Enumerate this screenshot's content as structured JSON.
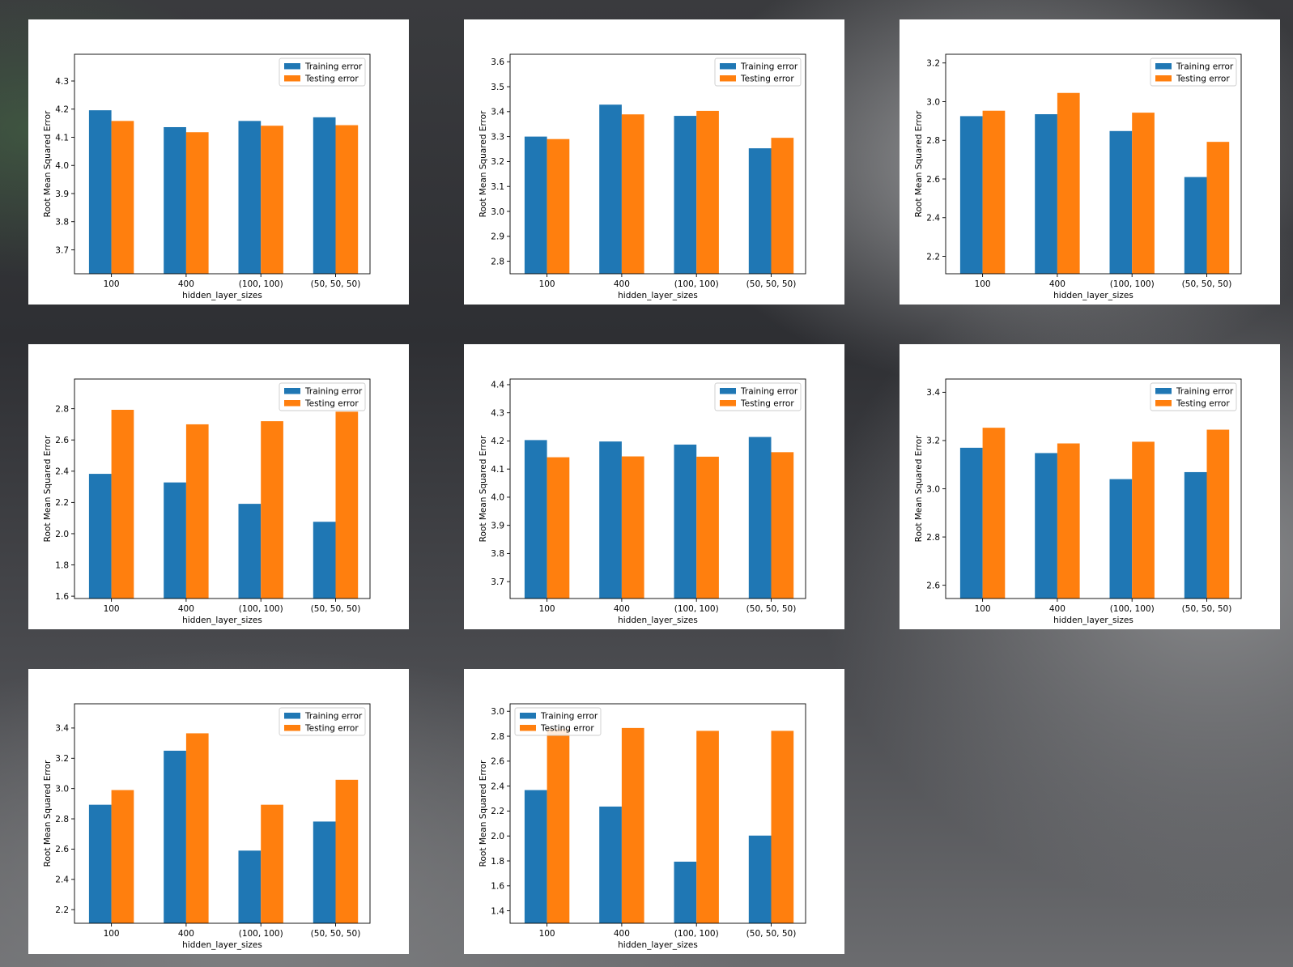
{
  "colors": {
    "training": "#1f77b4",
    "testing": "#ff7f0e"
  },
  "chart_data": [
    {
      "type": "bar",
      "categories": [
        "100",
        "400",
        "(100, 100)",
        "(50, 50, 50)"
      ],
      "series": [
        {
          "name": "Training error",
          "values": [
            4.196,
            4.136,
            4.158,
            4.171
          ]
        },
        {
          "name": "Testing error",
          "values": [
            4.158,
            4.118,
            4.141,
            4.143
          ]
        }
      ],
      "xlabel": "hidden_layer_sizes",
      "ylabel": "Root Mean Squared Error",
      "ylim": [
        3.615,
        4.395
      ],
      "yticks": [
        3.7,
        3.8,
        3.9,
        4.0,
        4.1,
        4.2,
        4.3
      ],
      "legend": "top-right"
    },
    {
      "type": "bar",
      "categories": [
        "100",
        "400",
        "(100, 100)",
        "(50, 50, 50)"
      ],
      "series": [
        {
          "name": "Training error",
          "values": [
            3.3,
            3.428,
            3.383,
            3.253
          ]
        },
        {
          "name": "Testing error",
          "values": [
            3.29,
            3.389,
            3.403,
            3.295
          ]
        }
      ],
      "xlabel": "hidden_layer_sizes",
      "ylabel": "Root Mean Squared Error",
      "ylim": [
        2.75,
        3.63
      ],
      "yticks": [
        2.8,
        2.9,
        3.0,
        3.1,
        3.2,
        3.3,
        3.4,
        3.5,
        3.6
      ],
      "legend": "top-right"
    },
    {
      "type": "bar",
      "categories": [
        "100",
        "400",
        "(100, 100)",
        "(50, 50, 50)"
      ],
      "series": [
        {
          "name": "Training error",
          "values": [
            2.925,
            2.935,
            2.848,
            2.61
          ]
        },
        {
          "name": "Testing error",
          "values": [
            2.953,
            3.045,
            2.943,
            2.792
          ]
        }
      ],
      "xlabel": "hidden_layer_sizes",
      "ylabel": "Root Mean Squared Error",
      "ylim": [
        2.11,
        3.245
      ],
      "yticks": [
        2.2,
        2.4,
        2.6,
        2.8,
        3.0,
        3.2
      ],
      "legend": "top-right"
    },
    {
      "type": "bar",
      "categories": [
        "100",
        "400",
        "(100, 100)",
        "(50, 50, 50)"
      ],
      "series": [
        {
          "name": "Training error",
          "values": [
            2.383,
            2.328,
            2.191,
            2.076
          ]
        },
        {
          "name": "Testing error",
          "values": [
            2.793,
            2.7,
            2.72,
            2.781
          ]
        }
      ],
      "xlabel": "hidden_layer_sizes",
      "ylabel": "Root Mean Squared Error",
      "ylim": [
        1.585,
        2.99
      ],
      "yticks": [
        1.6,
        1.8,
        2.0,
        2.2,
        2.4,
        2.6,
        2.8
      ],
      "legend": "top-right"
    },
    {
      "type": "bar",
      "categories": [
        "100",
        "400",
        "(100, 100)",
        "(50, 50, 50)"
      ],
      "series": [
        {
          "name": "Training error",
          "values": [
            4.203,
            4.198,
            4.187,
            4.214
          ]
        },
        {
          "name": "Testing error",
          "values": [
            4.142,
            4.145,
            4.144,
            4.16
          ]
        }
      ],
      "xlabel": "hidden_layer_sizes",
      "ylabel": "Root Mean Squared Error",
      "ylim": [
        3.64,
        4.42
      ],
      "yticks": [
        3.7,
        3.8,
        3.9,
        4.0,
        4.1,
        4.2,
        4.3,
        4.4
      ],
      "legend": "top-right"
    },
    {
      "type": "bar",
      "categories": [
        "100",
        "400",
        "(100, 100)",
        "(50, 50, 50)"
      ],
      "series": [
        {
          "name": "Training error",
          "values": [
            3.17,
            3.148,
            3.04,
            3.069
          ]
        },
        {
          "name": "Testing error",
          "values": [
            3.253,
            3.188,
            3.195,
            3.245
          ]
        }
      ],
      "xlabel": "hidden_layer_sizes",
      "ylabel": "Root Mean Squared Error",
      "ylim": [
        2.545,
        3.455
      ],
      "yticks": [
        2.6,
        2.8,
        3.0,
        3.2,
        3.4
      ],
      "legend": "top-right"
    },
    {
      "type": "bar",
      "categories": [
        "100",
        "400",
        "(100, 100)",
        "(50, 50, 50)"
      ],
      "series": [
        {
          "name": "Training error",
          "values": [
            2.893,
            3.25,
            2.59,
            2.782
          ]
        },
        {
          "name": "Testing error",
          "values": [
            2.99,
            3.365,
            2.893,
            3.058
          ]
        }
      ],
      "xlabel": "hidden_layer_sizes",
      "ylabel": "Root Mean Squared Error",
      "ylim": [
        2.11,
        3.56
      ],
      "yticks": [
        2.2,
        2.4,
        2.6,
        2.8,
        3.0,
        3.2,
        3.4
      ],
      "legend": "top-right"
    },
    {
      "type": "bar",
      "categories": [
        "100",
        "400",
        "(100, 100)",
        "(50, 50, 50)"
      ],
      "series": [
        {
          "name": "Training error",
          "values": [
            2.368,
            2.236,
            1.794,
            2.003
          ]
        },
        {
          "name": "Testing error",
          "values": [
            2.86,
            2.866,
            2.843,
            2.843
          ]
        }
      ],
      "xlabel": "hidden_layer_sizes",
      "ylabel": "Root Mean Squared Error",
      "ylim": [
        1.3,
        3.06
      ],
      "yticks": [
        1.4,
        1.6,
        1.8,
        2.0,
        2.2,
        2.4,
        2.6,
        2.8,
        3.0
      ],
      "legend": "top-left"
    }
  ]
}
